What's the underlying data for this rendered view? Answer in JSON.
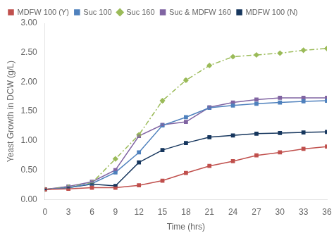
{
  "chart_data": {
    "type": "line",
    "x_label": "Time (hrs)",
    "y_label": "Yeast Growth in DCW (g/L)",
    "x": [
      0,
      3,
      6,
      9,
      12,
      15,
      18,
      21,
      24,
      27,
      30,
      33,
      36
    ],
    "series": [
      {
        "name": "MDFW 100 (Y)",
        "color": "#c0504d",
        "marker": "square",
        "line_style": "solid",
        "values": [
          0.17,
          0.18,
          0.2,
          0.2,
          0.24,
          0.32,
          0.45,
          0.57,
          0.65,
          0.75,
          0.8,
          0.86,
          0.9
        ],
        "errors": [
          0.005,
          0.005,
          0.005,
          0.005,
          0.008,
          0.008,
          0.01,
          0.01,
          0.01,
          0.01,
          0.01,
          0.01,
          0.01
        ]
      },
      {
        "name": "Suc 100",
        "color": "#4f81bd",
        "marker": "square",
        "line_style": "solid",
        "values": [
          0.17,
          0.2,
          0.27,
          0.46,
          0.8,
          1.26,
          1.4,
          1.56,
          1.6,
          1.63,
          1.65,
          1.67,
          1.68
        ],
        "errors": [
          0.005,
          0.005,
          0.008,
          0.01,
          0.015,
          0.015,
          0.015,
          0.015,
          0.012,
          0.012,
          0.012,
          0.012,
          0.012
        ]
      },
      {
        "name": "Suc 160",
        "color": "#9bbb59",
        "marker": "diamond",
        "line_style": "dashdot",
        "values": [
          0.17,
          0.21,
          0.28,
          0.69,
          1.1,
          1.68,
          2.03,
          2.28,
          2.43,
          2.46,
          2.49,
          2.54,
          2.57
        ],
        "errors": [
          0.005,
          0.008,
          0.01,
          0.015,
          0.02,
          0.025,
          0.025,
          0.02,
          0.015,
          0.015,
          0.015,
          0.015,
          0.015
        ]
      },
      {
        "name": "Suc & MDFW 160",
        "color": "#8064a2",
        "marker": "square",
        "line_style": "solid",
        "values": [
          0.17,
          0.22,
          0.3,
          0.5,
          1.08,
          1.27,
          1.32,
          1.57,
          1.65,
          1.7,
          1.73,
          1.73,
          1.73
        ],
        "errors": [
          0.005,
          0.005,
          0.008,
          0.01,
          0.015,
          0.015,
          0.015,
          0.015,
          0.012,
          0.012,
          0.012,
          0.012,
          0.012
        ]
      },
      {
        "name": "MDFW 100 (N)",
        "color": "#17375e",
        "marker": "square",
        "line_style": "solid",
        "values": [
          0.17,
          0.2,
          0.26,
          0.23,
          0.63,
          0.84,
          0.96,
          1.06,
          1.09,
          1.12,
          1.13,
          1.14,
          1.15
        ],
        "errors": [
          0.005,
          0.005,
          0.008,
          0.008,
          0.012,
          0.012,
          0.012,
          0.012,
          0.01,
          0.01,
          0.01,
          0.01,
          0.01
        ]
      }
    ],
    "xlim": [
      0,
      36
    ],
    "xticks": [
      0,
      3,
      6,
      9,
      12,
      15,
      18,
      21,
      24,
      27,
      30,
      33,
      36
    ],
    "ylim": [
      0.0,
      3.0
    ],
    "yticks": [
      {
        "value": 0.0,
        "label": "0.00"
      },
      {
        "value": 0.5,
        "label": "0.50"
      },
      {
        "value": 1.0,
        "label": "1.00"
      },
      {
        "value": 1.5,
        "label": "1.50"
      },
      {
        "value": 2.0,
        "label": "2.00"
      },
      {
        "value": 2.5,
        "label": "2.50"
      },
      {
        "value": 3.0,
        "label": "3.00"
      }
    ],
    "grid": false,
    "legend": "upper left"
  }
}
